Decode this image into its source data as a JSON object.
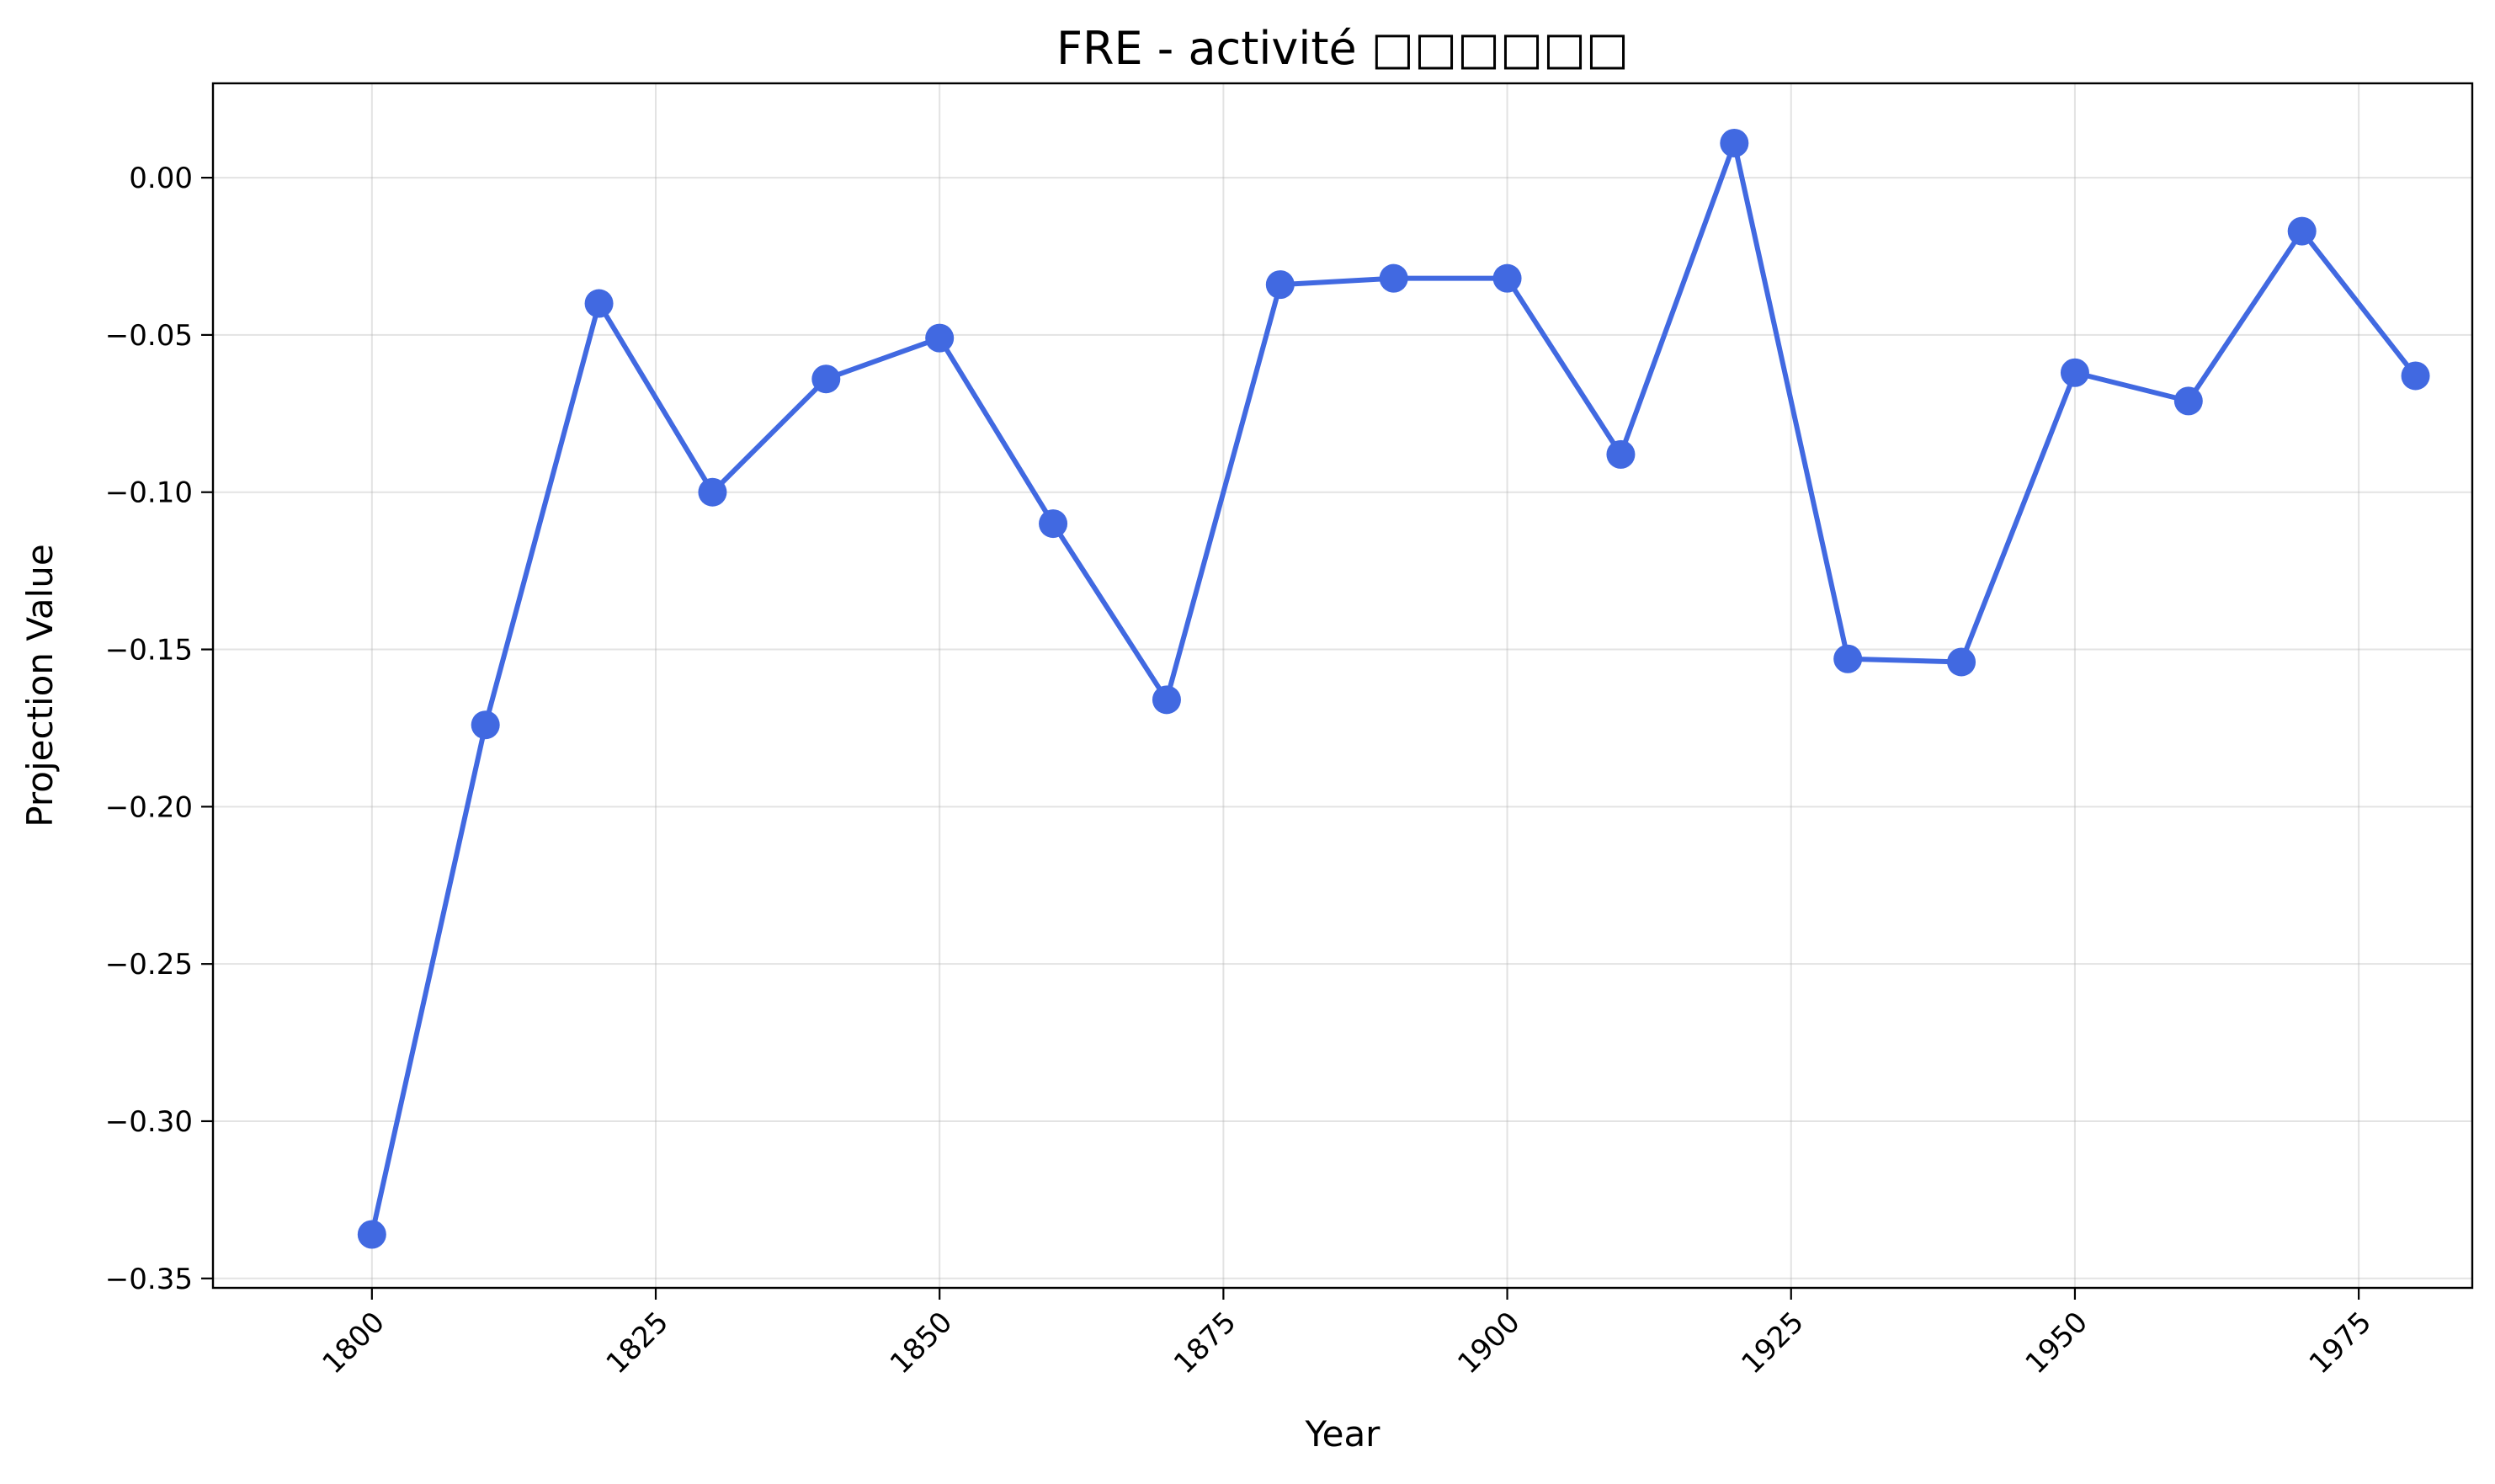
{
  "chart_data": {
    "type": "line",
    "title": "FRE - activité □□□□□□",
    "xlabel": "Year",
    "ylabel": "Projection Value",
    "xlim": [
      1786,
      1985
    ],
    "ylim": [
      -0.353,
      0.03
    ],
    "xticks": [
      1800,
      1825,
      1850,
      1875,
      1900,
      1925,
      1950,
      1975
    ],
    "xtick_labels": [
      "1800",
      "1825",
      "1850",
      "1875",
      "1900",
      "1925",
      "1950",
      "1975"
    ],
    "yticks": [
      0.0,
      -0.05,
      -0.1,
      -0.15,
      -0.2,
      -0.25,
      -0.3,
      -0.35
    ],
    "ytick_labels": [
      "0.00",
      "−0.05",
      "−0.10",
      "−0.15",
      "−0.20",
      "−0.25",
      "−0.30",
      "−0.35"
    ],
    "grid": true,
    "color": "#4169e1",
    "series": [
      {
        "x": [
          1800,
          1810,
          1820,
          1830,
          1840,
          1850,
          1860,
          1870,
          1880,
          1890,
          1900,
          1910,
          1920,
          1930,
          1940,
          1950,
          1960,
          1970,
          1980
        ],
        "values": [
          -0.336,
          -0.174,
          -0.04,
          -0.1,
          -0.064,
          -0.051,
          -0.11,
          -0.166,
          -0.034,
          -0.032,
          -0.032,
          -0.088,
          0.011,
          -0.153,
          -0.154,
          -0.062,
          -0.071,
          -0.017,
          -0.063
        ]
      }
    ]
  }
}
